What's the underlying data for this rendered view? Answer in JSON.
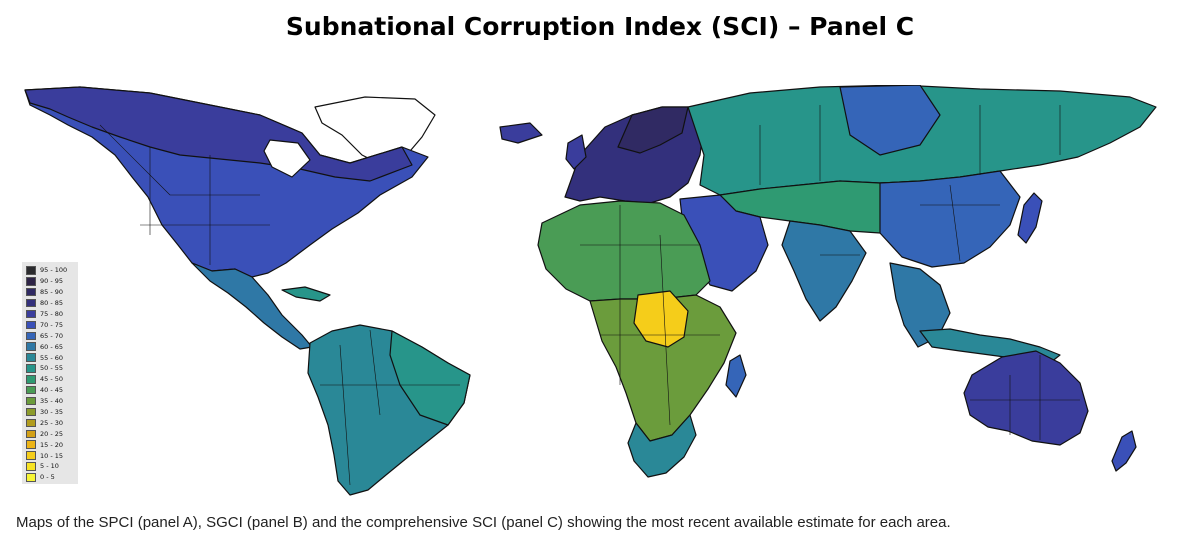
{
  "title": "Subnational Corruption Index (SCI) – Panel C",
  "caption": "Maps of the SPCI (panel A), SGCI (panel B) and the comprehensive SCI (panel C) showing the most recent available estimate for each area.",
  "legend": {
    "placement": "bottom-left",
    "bins": [
      {
        "label": "95 - 100",
        "color": "#2b2b2e"
      },
      {
        "label": "90 - 95",
        "color": "#2e2446"
      },
      {
        "label": "85 - 90",
        "color": "#302a63"
      },
      {
        "label": "80 - 85",
        "color": "#33307c"
      },
      {
        "label": "75 - 80",
        "color": "#3a3d9c"
      },
      {
        "label": "70 - 75",
        "color": "#3a50b8"
      },
      {
        "label": "65 - 70",
        "color": "#3565b8"
      },
      {
        "label": "60 - 65",
        "color": "#2f78a6"
      },
      {
        "label": "55 - 60",
        "color": "#2a8897"
      },
      {
        "label": "50 - 55",
        "color": "#27958a"
      },
      {
        "label": "45 - 50",
        "color": "#2f9a72"
      },
      {
        "label": "40 - 45",
        "color": "#4a9c55"
      },
      {
        "label": "35 - 40",
        "color": "#6b9c3c"
      },
      {
        "label": "30 - 35",
        "color": "#8d9c2c"
      },
      {
        "label": "25 - 30",
        "color": "#b19c1e"
      },
      {
        "label": "20 - 25",
        "color": "#d3a016"
      },
      {
        "label": "15 - 20",
        "color": "#edb416"
      },
      {
        "label": "10 - 15",
        "color": "#f5cd1a"
      },
      {
        "label": "5 - 10",
        "color": "#f7e324"
      },
      {
        "label": "0 - 5",
        "color": "#f7f534"
      }
    ]
  }
}
